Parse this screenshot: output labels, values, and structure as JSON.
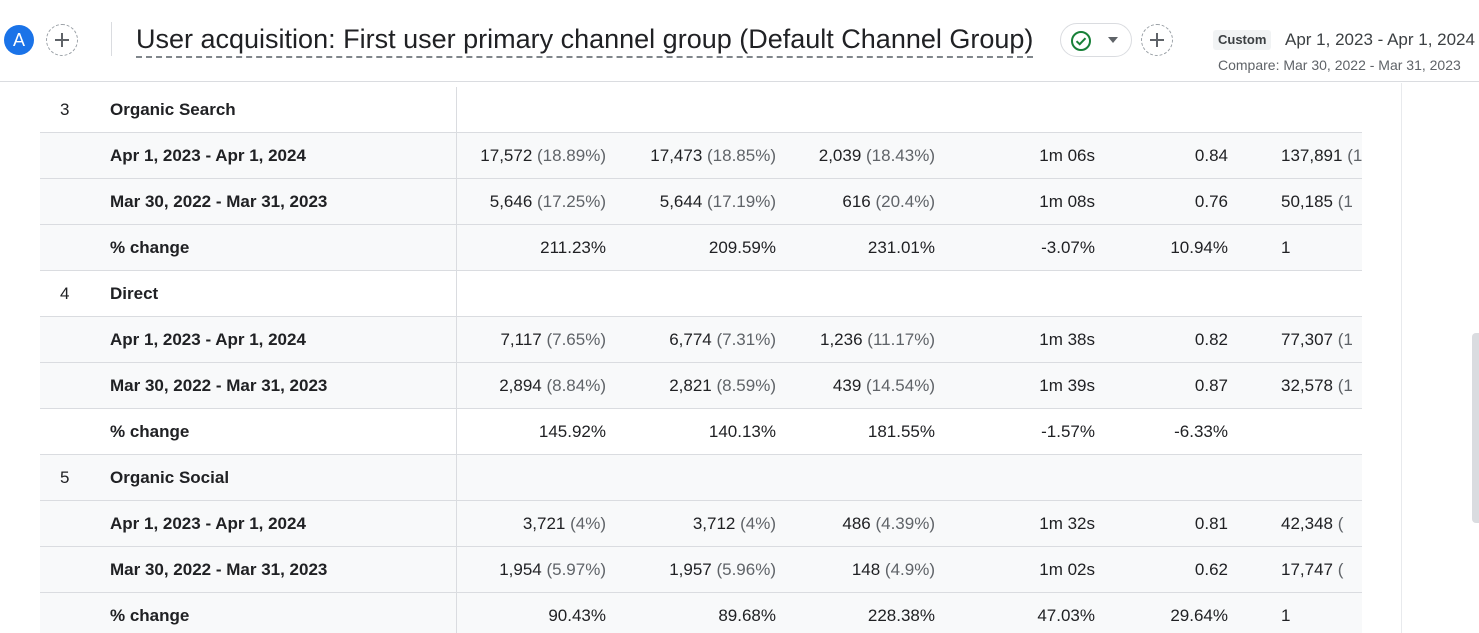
{
  "header": {
    "avatar_letter": "A",
    "title": "User acquisition: First user primary channel group (Default Channel Group)",
    "date_badge": "Custom",
    "date_range": "Apr 1, 2023 - Apr 1, 2024",
    "compare_range": "Compare: Mar 30, 2022 - Mar 31, 2023",
    "icons": {
      "add": "plus-icon",
      "status": "check-circle-icon",
      "dropdown": "caret-down-icon"
    },
    "colors": {
      "avatar": "#1a73e8",
      "status_check": "#188038"
    }
  },
  "table": {
    "groups": [
      {
        "rank": "3",
        "name": "Organic Search",
        "rows": [
          {
            "label": "Apr 1, 2023 - Apr 1, 2024",
            "c1": "17,572",
            "c1p": "(18.89%)",
            "c2": "17,473",
            "c2p": "(18.85%)",
            "c3": "2,039",
            "c3p": "(18.43%)",
            "c4": "1m 06s",
            "c5": "0.84",
            "c6": "137,891",
            "c6p": "(1"
          },
          {
            "label": "Mar 30, 2022 - Mar 31, 2023",
            "c1": "5,646",
            "c1p": "(17.25%)",
            "c2": "5,644",
            "c2p": "(17.19%)",
            "c3": "616",
            "c3p": "(20.4%)",
            "c4": "1m 08s",
            "c5": "0.76",
            "c6": "50,185",
            "c6p": "(1"
          },
          {
            "label": "% change",
            "c1": "211.23%",
            "c1p": "",
            "c2": "209.59%",
            "c2p": "",
            "c3": "231.01%",
            "c3p": "",
            "c4": "-3.07%",
            "c5": "10.94%",
            "c6": "1",
            "c6p": ""
          }
        ]
      },
      {
        "rank": "4",
        "name": "Direct",
        "rows": [
          {
            "label": "Apr 1, 2023 - Apr 1, 2024",
            "c1": "7,117",
            "c1p": "(7.65%)",
            "c2": "6,774",
            "c2p": "(7.31%)",
            "c3": "1,236",
            "c3p": "(11.17%)",
            "c4": "1m 38s",
            "c5": "0.82",
            "c6": "77,307",
            "c6p": "(1"
          },
          {
            "label": "Mar 30, 2022 - Mar 31, 2023",
            "c1": "2,894",
            "c1p": "(8.84%)",
            "c2": "2,821",
            "c2p": "(8.59%)",
            "c3": "439",
            "c3p": "(14.54%)",
            "c4": "1m 39s",
            "c5": "0.87",
            "c6": "32,578",
            "c6p": "(1"
          },
          {
            "label": "% change",
            "c1": "145.92%",
            "c1p": "",
            "c2": "140.13%",
            "c2p": "",
            "c3": "181.55%",
            "c3p": "",
            "c4": "-1.57%",
            "c5": "-6.33%",
            "c6": "",
            "c6p": ""
          }
        ]
      },
      {
        "rank": "5",
        "name": "Organic Social",
        "rows": [
          {
            "label": "Apr 1, 2023 - Apr 1, 2024",
            "c1": "3,721",
            "c1p": "(4%)",
            "c2": "3,712",
            "c2p": "(4%)",
            "c3": "486",
            "c3p": "(4.39%)",
            "c4": "1m 32s",
            "c5": "0.81",
            "c6": "42,348",
            "c6p": "("
          },
          {
            "label": "Mar 30, 2022 - Mar 31, 2023",
            "c1": "1,954",
            "c1p": "(5.97%)",
            "c2": "1,957",
            "c2p": "(5.96%)",
            "c3": "148",
            "c3p": "(4.9%)",
            "c4": "1m 02s",
            "c5": "0.62",
            "c6": "17,747",
            "c6p": "("
          },
          {
            "label": "% change",
            "c1": "90.43%",
            "c1p": "",
            "c2": "89.68%",
            "c2p": "",
            "c3": "228.38%",
            "c3p": "",
            "c4": "47.03%",
            "c5": "29.64%",
            "c6": "1",
            "c6p": ""
          }
        ]
      }
    ]
  }
}
